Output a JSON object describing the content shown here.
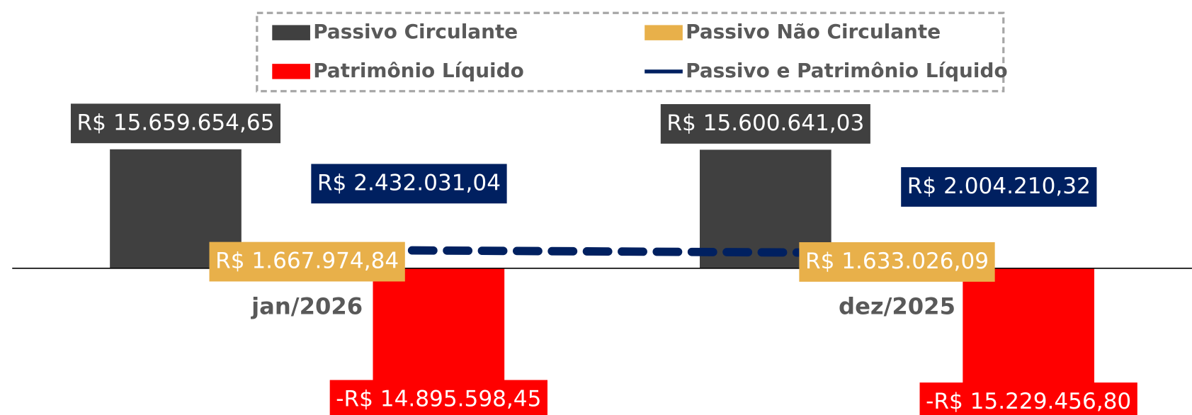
{
  "chart_data": {
    "type": "bar",
    "categories": [
      "jan/2026",
      "dez/2025"
    ],
    "series": [
      {
        "name": "Passivo Circulante",
        "color": "#404040",
        "values": [
          15659654.65,
          15600641.03
        ],
        "value_labels": [
          "R$ 15.659.654,65",
          "R$ 15.600.641,03"
        ]
      },
      {
        "name": "Passivo Não Circulante",
        "color": "#E8B04A",
        "values": [
          1667974.84,
          1633026.09
        ],
        "value_labels": [
          "R$ 1.667.974,84",
          "R$ 1.633.026,09"
        ]
      },
      {
        "name": "Patrimônio Líquido",
        "color": "#FF0000",
        "values": [
          -14895598.45,
          -15229456.8
        ],
        "value_labels": [
          "-R$ 14.895.598,45",
          "-R$ 15.229.456,80"
        ]
      },
      {
        "name": "Passivo e Patrimônio Líquido",
        "type": "line",
        "color": "#002060",
        "values": [
          2432031.04,
          2004210.32
        ],
        "value_labels": [
          "R$ 2.432.031,04",
          "R$ 2.004.210,32"
        ]
      }
    ],
    "ylim": [
      -19000000,
      17000000
    ],
    "legend": "top"
  }
}
